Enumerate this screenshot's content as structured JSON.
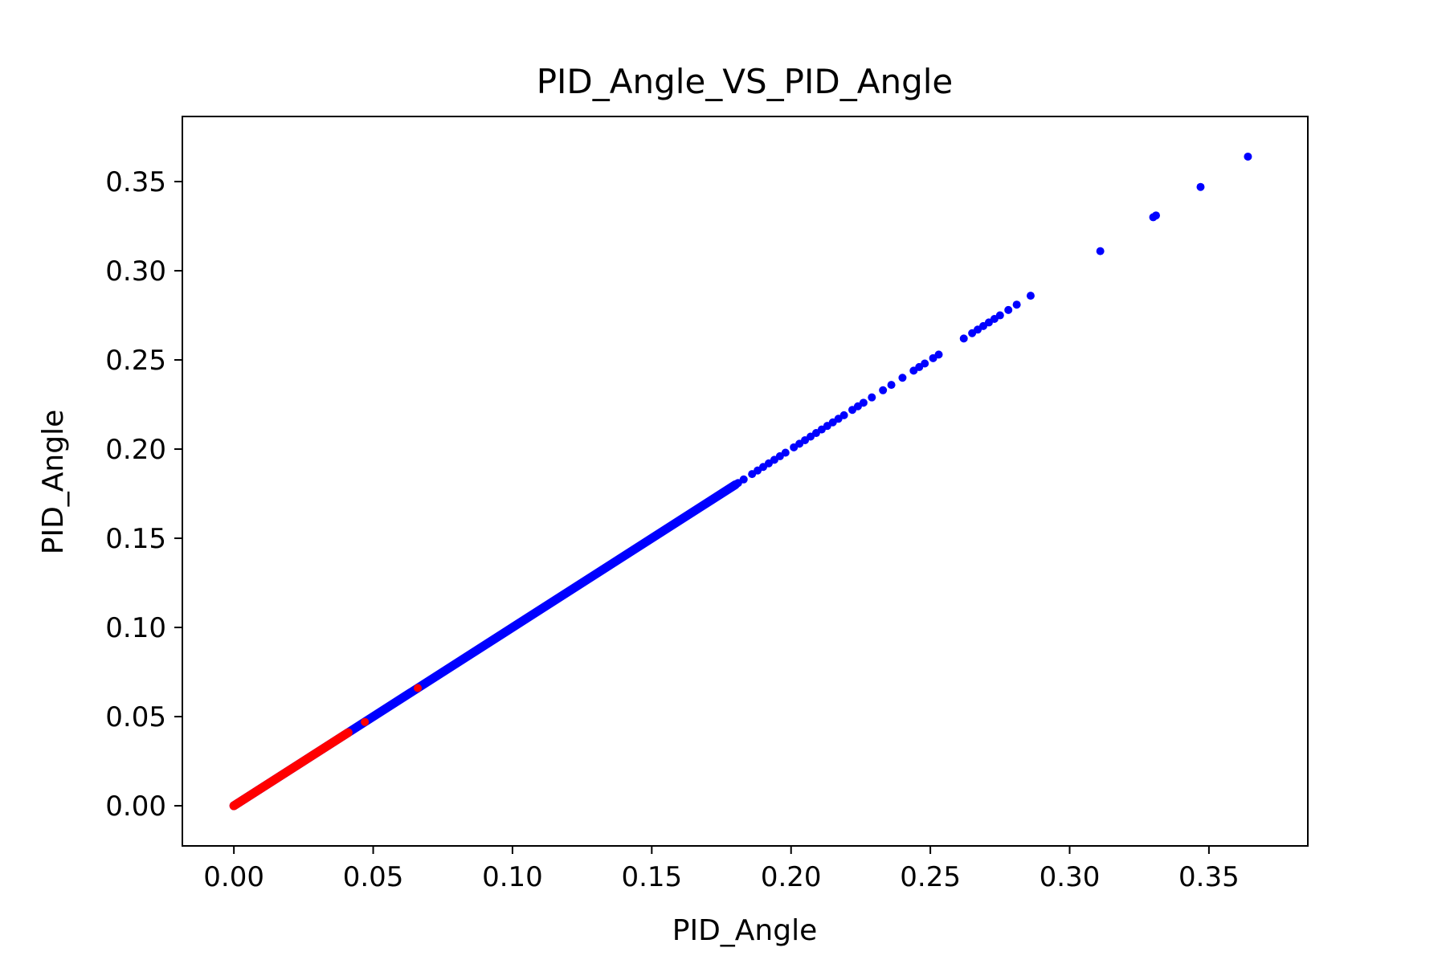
{
  "chart_data": {
    "type": "scatter",
    "title": "PID_Angle_VS_PID_Angle",
    "xlabel": "PID_Angle",
    "ylabel": "PID_Angle",
    "xlim": [
      -0.0185,
      0.3855
    ],
    "ylim": [
      -0.0225,
      0.3865
    ],
    "xticks": [
      0.0,
      0.05,
      0.1,
      0.15,
      0.2,
      0.25,
      0.3,
      0.35
    ],
    "xtick_labels": [
      "0.00",
      "0.05",
      "0.10",
      "0.15",
      "0.20",
      "0.25",
      "0.30",
      "0.35"
    ],
    "yticks": [
      0.0,
      0.05,
      0.1,
      0.15,
      0.2,
      0.25,
      0.3,
      0.35
    ],
    "ytick_labels": [
      "0.00",
      "0.05",
      "0.10",
      "0.15",
      "0.20",
      "0.25",
      "0.30",
      "0.35"
    ],
    "grid": false,
    "legend": null,
    "series": [
      {
        "color": "#0000ff",
        "dense_range": [
          0.0,
          0.18
        ],
        "points": [
          [
            0.181,
            0.181
          ],
          [
            0.183,
            0.183
          ],
          [
            0.186,
            0.186
          ],
          [
            0.188,
            0.188
          ],
          [
            0.19,
            0.19
          ],
          [
            0.192,
            0.192
          ],
          [
            0.194,
            0.194
          ],
          [
            0.196,
            0.196
          ],
          [
            0.198,
            0.198
          ],
          [
            0.201,
            0.201
          ],
          [
            0.203,
            0.203
          ],
          [
            0.205,
            0.205
          ],
          [
            0.207,
            0.207
          ],
          [
            0.209,
            0.209
          ],
          [
            0.211,
            0.211
          ],
          [
            0.213,
            0.213
          ],
          [
            0.215,
            0.215
          ],
          [
            0.217,
            0.217
          ],
          [
            0.219,
            0.219
          ],
          [
            0.222,
            0.222
          ],
          [
            0.224,
            0.224
          ],
          [
            0.226,
            0.226
          ],
          [
            0.229,
            0.229
          ],
          [
            0.233,
            0.233
          ],
          [
            0.236,
            0.236
          ],
          [
            0.24,
            0.24
          ],
          [
            0.244,
            0.244
          ],
          [
            0.246,
            0.246
          ],
          [
            0.248,
            0.248
          ],
          [
            0.251,
            0.251
          ],
          [
            0.253,
            0.253
          ],
          [
            0.262,
            0.262
          ],
          [
            0.265,
            0.265
          ],
          [
            0.267,
            0.267
          ],
          [
            0.269,
            0.269
          ],
          [
            0.271,
            0.271
          ],
          [
            0.273,
            0.273
          ],
          [
            0.275,
            0.275
          ],
          [
            0.278,
            0.278
          ],
          [
            0.281,
            0.281
          ],
          [
            0.286,
            0.286
          ],
          [
            0.311,
            0.311
          ],
          [
            0.33,
            0.33
          ],
          [
            0.331,
            0.331
          ],
          [
            0.347,
            0.347
          ],
          [
            0.364,
            0.364
          ]
        ]
      },
      {
        "color": "#ff0000",
        "dense_range": [
          0.0,
          0.041
        ],
        "points": [
          [
            0.047,
            0.047
          ],
          [
            0.066,
            0.066
          ]
        ]
      }
    ]
  }
}
